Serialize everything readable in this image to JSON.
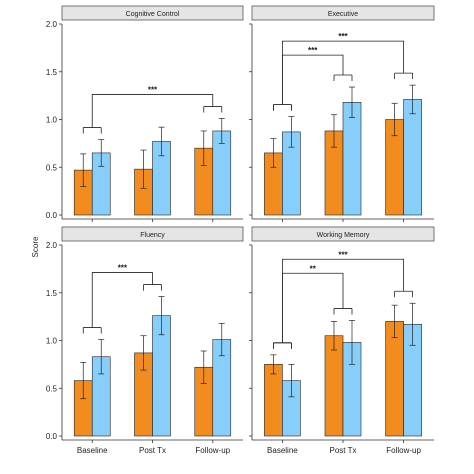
{
  "chart_data": {
    "type": "bar",
    "ylabel": "Score",
    "ylim": [
      0,
      2.0
    ],
    "y_ticks": [
      "0.0",
      "0.5",
      "1.0",
      "1.5",
      "2.0"
    ],
    "categories": [
      "Baseline",
      "Post Tx",
      "Follow-up"
    ],
    "colors": {
      "series_a": "#F28C1E",
      "series_b": "#87CEFA"
    },
    "grid": false,
    "panels": [
      {
        "title": "Cognitive Control",
        "series_a": [
          0.47,
          0.48,
          0.7
        ],
        "series_a_err": [
          0.17,
          0.2,
          0.18
        ],
        "series_b": [
          0.65,
          0.77,
          0.88
        ],
        "series_b_err": [
          0.14,
          0.15,
          0.13
        ],
        "significance": [
          {
            "from": "Baseline",
            "to": "Follow-up",
            "label": "***"
          }
        ]
      },
      {
        "title": "Executive",
        "series_a": [
          0.65,
          0.88,
          1.0
        ],
        "series_a_err": [
          0.15,
          0.17,
          0.17
        ],
        "series_b": [
          0.87,
          1.18,
          1.21
        ],
        "series_b_err": [
          0.16,
          0.16,
          0.15
        ],
        "significance": [
          {
            "from": "Baseline",
            "to": "Post Tx",
            "label": "***"
          },
          {
            "from": "Baseline",
            "to": "Follow-up",
            "label": "***"
          }
        ]
      },
      {
        "title": "Fluency",
        "series_a": [
          0.58,
          0.87,
          0.72
        ],
        "series_a_err": [
          0.19,
          0.18,
          0.17
        ],
        "series_b": [
          0.83,
          1.26,
          1.01
        ],
        "series_b_err": [
          0.18,
          0.2,
          0.17
        ],
        "significance": [
          {
            "from": "Baseline",
            "to": "Post Tx",
            "label": "***"
          }
        ]
      },
      {
        "title": "Working Memory",
        "series_a": [
          0.75,
          1.05,
          1.2
        ],
        "series_a_err": [
          0.1,
          0.15,
          0.17
        ],
        "series_b": [
          0.58,
          0.98,
          1.17
        ],
        "series_b_err": [
          0.17,
          0.23,
          0.22
        ],
        "significance": [
          {
            "from": "Baseline",
            "to": "Post Tx",
            "label": "**"
          },
          {
            "from": "Baseline",
            "to": "Follow-up",
            "label": "***"
          }
        ]
      }
    ]
  }
}
